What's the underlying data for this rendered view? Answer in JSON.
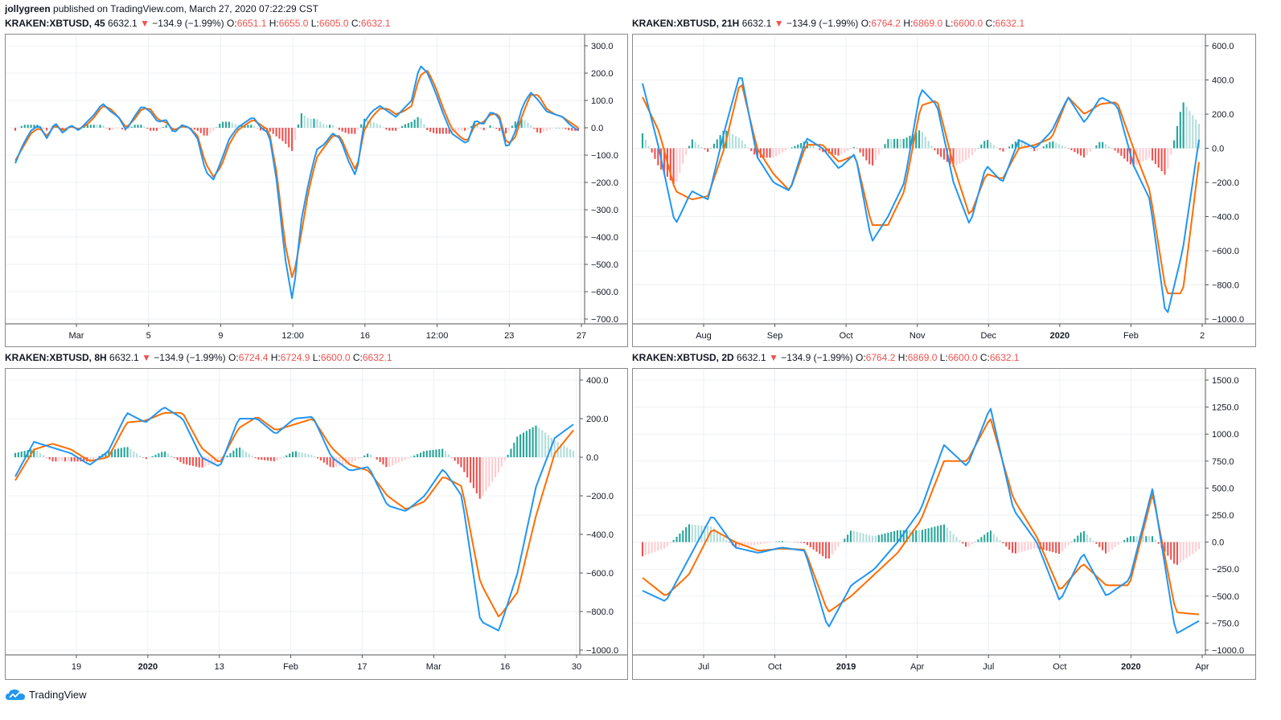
{
  "header": {
    "user": "jollygreen",
    "published": "published on TradingView.com, March 27, 2020 07:22:29 CST"
  },
  "footer": {
    "brand": "TradingView"
  },
  "colors": {
    "macd": "#2196f3",
    "signal": "#ff6d00",
    "hist_up_strong": "#26a69a",
    "hist_up_weak": "#b2dfdb",
    "hist_down_strong": "#ef5350",
    "hist_down_weak": "#ffcdd2",
    "grid": "#eef0f3",
    "down_arrow": "#ef5350"
  },
  "panels": [
    {
      "symbol": "KRAKEN:XBTUSD, 45",
      "price": "6632.1",
      "change": "−134.9 (−1.99%)",
      "o": "6651.1",
      "h": "6655.0",
      "l": "6605.0",
      "c": "6632.1",
      "x_ticks": [
        "Mar",
        "5",
        "9",
        "12:00",
        "16",
        "12:00",
        "23",
        "27"
      ],
      "y_ticks": [
        "300.0",
        "200.0",
        "100.0",
        "0.0",
        "−100.0",
        "−200.0",
        "−300.0",
        "−400.0",
        "−500.0",
        "−600.0",
        "−700.0"
      ],
      "chart_data": {
        "type": "line",
        "ylim": [
          -700,
          300
        ],
        "series": [
          {
            "values": [
              -130,
              -60,
              -10,
              10,
              -40,
              20,
              -20,
              10,
              -10,
              20,
              50,
              90,
              60,
              40,
              -10,
              40,
              80,
              60,
              20,
              30,
              -20,
              10,
              0,
              -40,
              -160,
              -190,
              -120,
              -40,
              0,
              20,
              40,
              0,
              -20,
              -200,
              -470,
              -640,
              -350,
              -200,
              -80,
              -60,
              -20,
              -40,
              -120,
              -180,
              20,
              60,
              80,
              60,
              40,
              70,
              100,
              230,
              200,
              130,
              50,
              -20,
              -40,
              -60,
              30,
              10,
              60,
              40,
              -80,
              -20,
              80,
              130,
              100,
              60,
              50,
              40,
              10,
              -10
            ]
          },
          {
            "values": [
              -120,
              -70,
              -20,
              0,
              -30,
              10,
              -10,
              5,
              -5,
              10,
              40,
              80,
              70,
              40,
              0,
              30,
              70,
              70,
              30,
              20,
              -10,
              5,
              0,
              -30,
              -130,
              -180,
              -140,
              -60,
              -10,
              10,
              30,
              10,
              -10,
              -170,
              -420,
              -560,
              -400,
              -230,
              -110,
              -70,
              -30,
              -30,
              -100,
              -160,
              -10,
              40,
              70,
              70,
              50,
              60,
              80,
              190,
              210,
              150,
              70,
              0,
              -30,
              -50,
              10,
              20,
              50,
              50,
              -60,
              -40,
              50,
              120,
              120,
              70,
              50,
              40,
              20,
              0
            ]
          }
        ]
      }
    },
    {
      "symbol": "KRAKEN:XBTUSD, 21H",
      "price": "6632.1",
      "change": "−134.9 (−1.99%)",
      "o": "6764.2",
      "h": "6869.0",
      "l": "6600.0",
      "c": "6632.1",
      "x_ticks": [
        "Aug",
        "Sep",
        "Oct",
        "Nov",
        "Dec",
        "2020",
        "Feb",
        "2"
      ],
      "y_ticks": [
        "600.0",
        "400.0",
        "200.0",
        "0.0",
        "−200.0",
        "−400.0",
        "−600.0",
        "−800.0",
        "−1000.0"
      ],
      "chart_data": {
        "type": "line",
        "ylim": [
          -1000,
          600
        ],
        "series": [
          {
            "values": [
              380,
              0,
              -450,
              -250,
              -300,
              100,
              450,
              -50,
              -200,
              -250,
              60,
              0,
              -120,
              -30,
              -550,
              -400,
              -200,
              350,
              250,
              -200,
              -450,
              -100,
              -200,
              50,
              0,
              100,
              300,
              150,
              300,
              250,
              -100,
              -300,
              -1000,
              -600,
              50
            ]
          },
          {
            "values": [
              300,
              100,
              -250,
              -300,
              -280,
              0,
              400,
              0,
              -150,
              -250,
              20,
              20,
              -80,
              -40,
              -450,
              -450,
              -250,
              250,
              280,
              -100,
              -400,
              -150,
              -180,
              0,
              20,
              60,
              300,
              200,
              260,
              270,
              0,
              -250,
              -850,
              -850,
              -80
            ]
          }
        ]
      }
    },
    {
      "symbol": "KRAKEN:XBTUSD, 8H",
      "price": "6632.1",
      "change": "−134.9 (−1.99%)",
      "o": "6724.4",
      "h": "6724.9",
      "l": "6600.0",
      "c": "6632.1",
      "x_ticks": [
        "19",
        "2020",
        "13",
        "Feb",
        "17",
        "Mar",
        "16",
        "30"
      ],
      "y_ticks": [
        "400.0",
        "200.0",
        "0.0",
        "−200.0",
        "−400.0",
        "−600.0",
        "−800.0",
        "−1000.0"
      ],
      "chart_data": {
        "type": "line",
        "ylim": [
          -1000,
          400
        ],
        "series": [
          {
            "values": [
              -100,
              80,
              50,
              20,
              -40,
              30,
              230,
              180,
              260,
              200,
              0,
              -50,
              200,
              200,
              120,
              200,
              210,
              0,
              -70,
              -50,
              -250,
              -280,
              -200,
              -60,
              -200,
              -850,
              -900,
              -600,
              -150,
              100,
              170
            ]
          },
          {
            "values": [
              -120,
              40,
              70,
              40,
              -20,
              0,
              180,
              190,
              230,
              230,
              50,
              -30,
              150,
              210,
              140,
              170,
              200,
              50,
              -40,
              -70,
              -200,
              -270,
              -230,
              -100,
              -150,
              -650,
              -830,
              -700,
              -300,
              20,
              140
            ]
          }
        ]
      }
    },
    {
      "symbol": "KRAKEN:XBTUSD, 2D",
      "price": "6632.1",
      "change": "−134.9 (−1.99%)",
      "o": "6764.2",
      "h": "6869.0",
      "l": "6600.0",
      "c": "6632.1",
      "x_ticks": [
        "Jul",
        "Oct",
        "2019",
        "Apr",
        "Jul",
        "Oct",
        "2020",
        "Apr"
      ],
      "y_ticks": [
        "1500.0",
        "1250.0",
        "1000.0",
        "750.0",
        "500.0",
        "250.0",
        "0.0",
        "−250.0",
        "−500.0",
        "−750.0",
        "−1000.0"
      ],
      "chart_data": {
        "type": "line",
        "ylim": [
          -1000,
          1500
        ],
        "series": [
          {
            "values": [
              -450,
              -550,
              -150,
              250,
              -50,
              -100,
              -50,
              -80,
              -800,
              -400,
              -250,
              0,
              300,
              900,
              700,
              1250,
              300,
              0,
              -550,
              -100,
              -500,
              -350,
              500,
              -850,
              -730
            ]
          },
          {
            "values": [
              -330,
              -500,
              -300,
              120,
              0,
              -80,
              -60,
              -70,
              -650,
              -500,
              -300,
              -100,
              200,
              750,
              750,
              1150,
              400,
              50,
              -450,
              -200,
              -400,
              -400,
              450,
              -650,
              -670
            ]
          }
        ]
      }
    }
  ]
}
